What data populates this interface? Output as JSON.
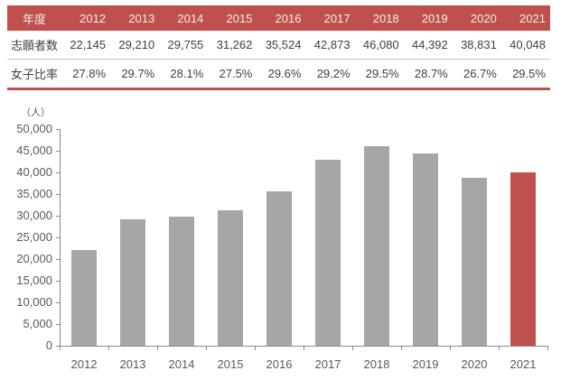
{
  "table": {
    "year_header_label": "年度",
    "years": [
      "2012",
      "2013",
      "2014",
      "2015",
      "2016",
      "2017",
      "2018",
      "2019",
      "2020",
      "2021"
    ],
    "rows": [
      {
        "label": "志願者数",
        "values": [
          "22,145",
          "29,210",
          "29,755",
          "31,262",
          "35,524",
          "42,873",
          "46,080",
          "44,392",
          "38,831",
          "40,048"
        ]
      },
      {
        "label": "女子比率",
        "values": [
          "27.8%",
          "29.7%",
          "28.1%",
          "27.5%",
          "29.6%",
          "29.2%",
          "29.5%",
          "28.7%",
          "26.7%",
          "29.5%"
        ]
      }
    ]
  },
  "chart_data": {
    "type": "bar",
    "title": "",
    "unit_label": "（人）",
    "categories": [
      "2012",
      "2013",
      "2014",
      "2015",
      "2016",
      "2017",
      "2018",
      "2019",
      "2020",
      "2021"
    ],
    "values": [
      22145,
      29210,
      29755,
      31262,
      35524,
      42873,
      46080,
      44392,
      38831,
      40048
    ],
    "xlabel": "",
    "ylabel": "人",
    "ylim": [
      0,
      50000
    ],
    "ytick_step": 5000,
    "ytick_labels": [
      "0",
      "5,000",
      "10,000",
      "15,000",
      "20,000",
      "25,000",
      "30,000",
      "35,000",
      "40,000",
      "45,000",
      "50,000"
    ],
    "grid": false,
    "legend_position": "none",
    "bar_color": "#a6a6a6",
    "highlight_index": 9,
    "highlight_color": "#c0504d"
  },
  "colors": {
    "table_header_bg": "#c0504d",
    "table_header_text": "#f4ebea",
    "table_body_text": "#404040",
    "table_row_divider": "#c6c6c6",
    "table_bottom_border": "#c0504d",
    "axis_line": "#898989",
    "tick_label_text": "#595959"
  }
}
